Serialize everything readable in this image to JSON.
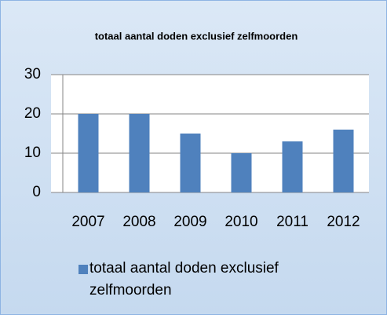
{
  "chart_data": {
    "type": "bar",
    "title": "totaal aantal doden exclusief zelfmoorden",
    "categories": [
      "2007",
      "2008",
      "2009",
      "2010",
      "2011",
      "2012"
    ],
    "series": [
      {
        "name": "totaal aantal doden exclusief zelfmoorden",
        "color": "#4f81bd",
        "values": [
          20,
          20,
          15,
          10,
          13,
          16
        ]
      }
    ],
    "ylim": [
      0,
      30
    ],
    "yticks": [
      0,
      10,
      20,
      30
    ],
    "grid": true,
    "legend": "bottom"
  }
}
